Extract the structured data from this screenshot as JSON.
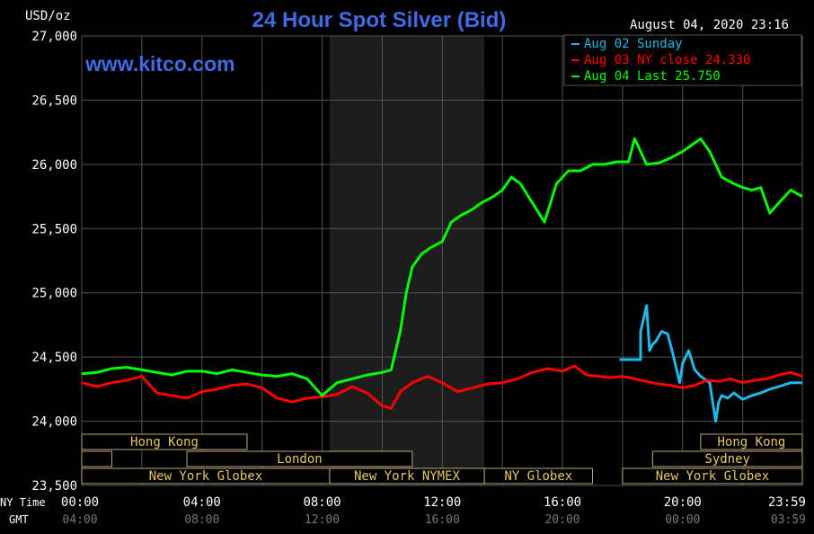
{
  "chart_data": {
    "type": "line",
    "title": "24 Hour Spot Silver (Bid)",
    "ylabel": "USD/oz",
    "date_label": "August 04, 2020 23:16",
    "watermark": "www.kitco.com",
    "ylim": [
      23500,
      27000
    ],
    "y_ticks": [
      "27,000",
      "26,500",
      "26,000",
      "25,500",
      "25,000",
      "24,500",
      "24,000",
      "23,500"
    ],
    "x_axis_label_ny": "NY Time",
    "x_axis_label_gmt": "GMT",
    "x_ticks_ny": [
      "00:00",
      "04:00",
      "08:00",
      "12:00",
      "16:00",
      "20:00",
      "23:59"
    ],
    "x_ticks_gmt": [
      "04:00",
      "08:00",
      "12:00",
      "16:00",
      "20:00",
      "00:00",
      "03:59"
    ],
    "x_hours": [
      0,
      4,
      8,
      12,
      16,
      20,
      23.983
    ],
    "shaded_band_hours": [
      8.25,
      13.4
    ],
    "colors": {
      "background": "#000000",
      "grid": "#555555",
      "title": "#4169e1",
      "sunday": "#20b8e8",
      "ny_close": "#ff0000",
      "last": "#00ff00",
      "session_box": "#b8a878",
      "session_text": "#e6c860"
    },
    "legend": [
      {
        "label": "Aug 02 Sunday",
        "color": "#20b8e8"
      },
      {
        "label": "Aug 03 NY close 24.330",
        "color": "#ff0000"
      },
      {
        "label": "Aug 04 Last 25.750",
        "color": "#00ff00"
      }
    ],
    "sessions": [
      {
        "label": "Hong Kong",
        "row": 0,
        "start": 0,
        "end": 5.5
      },
      {
        "label": "London",
        "row": 1,
        "start": 3.5,
        "end": 11
      },
      {
        "label": "",
        "row": 1,
        "start": 0,
        "end": 1
      },
      {
        "label": "New York Globex",
        "row": 2,
        "start": 0,
        "end": 8.25
      },
      {
        "label": "New York NYMEX",
        "row": 2,
        "start": 8.25,
        "end": 13.4
      },
      {
        "label": "NY Globex",
        "row": 2,
        "start": 13.4,
        "end": 17
      },
      {
        "label": "Hong Kong",
        "row": 0,
        "start": 20.6,
        "end": 23.983
      },
      {
        "label": "Sydney",
        "row": 1,
        "start": 19,
        "end": 23.983
      },
      {
        "label": "New York Globex",
        "row": 2,
        "start": 18,
        "end": 23.983
      }
    ],
    "series": [
      {
        "name": "Aug 02 Sunday",
        "color": "#20b8e8",
        "x": [
          17.9,
          18.6,
          18.6,
          18.8,
          18.9,
          19.0,
          19.1,
          19.3,
          19.5,
          19.7,
          19.9,
          20.0,
          20.2,
          20.4,
          20.6,
          20.9,
          21.1,
          21.2,
          21.3,
          21.5,
          21.7,
          22.0,
          22.3,
          22.6,
          22.9,
          23.2,
          23.6,
          23.983
        ],
        "values": [
          24480,
          24480,
          24700,
          24900,
          24550,
          24600,
          24620,
          24700,
          24680,
          24500,
          24300,
          24450,
          24550,
          24400,
          24350,
          24300,
          24000,
          24150,
          24200,
          24180,
          24220,
          24170,
          24200,
          24220,
          24250,
          24270,
          24300,
          24300
        ]
      },
      {
        "name": "Aug 03 NY close",
        "color": "#ff0000",
        "x": [
          0,
          0.5,
          1.0,
          1.5,
          2.0,
          2.5,
          3.0,
          3.5,
          4.0,
          4.5,
          5.0,
          5.5,
          6.0,
          6.5,
          7.0,
          7.5,
          8.0,
          8.5,
          9.0,
          9.5,
          10.0,
          10.3,
          10.6,
          11.0,
          11.5,
          12.0,
          12.5,
          13.0,
          13.5,
          14.0,
          14.5,
          15.0,
          15.5,
          16.0,
          16.4,
          16.8,
          17.2,
          17.6,
          18.0,
          18.4,
          18.8,
          19.2,
          19.6,
          20.0,
          20.4,
          20.8,
          21.2,
          21.6,
          22.0,
          22.4,
          22.8,
          23.2,
          23.6,
          23.983
        ],
        "values": [
          24300,
          24270,
          24300,
          24320,
          24350,
          24220,
          24200,
          24180,
          24230,
          24250,
          24280,
          24290,
          24260,
          24180,
          24150,
          24180,
          24190,
          24210,
          24270,
          24220,
          24120,
          24100,
          24230,
          24300,
          24350,
          24300,
          24230,
          24260,
          24290,
          24300,
          24330,
          24380,
          24410,
          24390,
          24430,
          24360,
          24350,
          24340,
          24350,
          24330,
          24310,
          24290,
          24280,
          24260,
          24280,
          24320,
          24310,
          24330,
          24300,
          24320,
          24330,
          24360,
          24380,
          24350
        ]
      },
      {
        "name": "Aug 04 Last",
        "color": "#00ff00",
        "x": [
          0,
          0.5,
          1.0,
          1.5,
          2.0,
          2.5,
          3.0,
          3.5,
          4.0,
          4.5,
          5.0,
          5.5,
          6.0,
          6.5,
          7.0,
          7.5,
          8.0,
          8.5,
          9.0,
          9.5,
          10.0,
          10.3,
          10.6,
          10.8,
          11.0,
          11.3,
          11.6,
          12.0,
          12.3,
          12.6,
          13.0,
          13.3,
          13.7,
          14.0,
          14.3,
          14.6,
          15.0,
          15.4,
          15.8,
          16.2,
          16.6,
          17.0,
          17.4,
          17.8,
          18.0,
          18.2,
          18.4,
          18.8,
          19.2,
          19.6,
          20.0,
          20.3,
          20.6,
          20.9,
          21.3,
          21.7,
          22.0,
          22.3,
          22.6,
          22.9,
          23.2,
          23.6,
          23.983
        ],
        "values": [
          24370,
          24380,
          24410,
          24420,
          24400,
          24380,
          24360,
          24390,
          24390,
          24370,
          24400,
          24380,
          24360,
          24350,
          24370,
          24330,
          24200,
          24300,
          24330,
          24360,
          24380,
          24400,
          24700,
          25000,
          25200,
          25300,
          25350,
          25400,
          25550,
          25600,
          25650,
          25700,
          25750,
          25800,
          25900,
          25850,
          25700,
          25550,
          25850,
          25950,
          25950,
          26000,
          26000,
          26020,
          26020,
          26020,
          26200,
          26000,
          26010,
          26050,
          26100,
          26150,
          26200,
          26100,
          25900,
          25850,
          25820,
          25800,
          25820,
          25620,
          25700,
          25800,
          25750
        ]
      }
    ]
  }
}
